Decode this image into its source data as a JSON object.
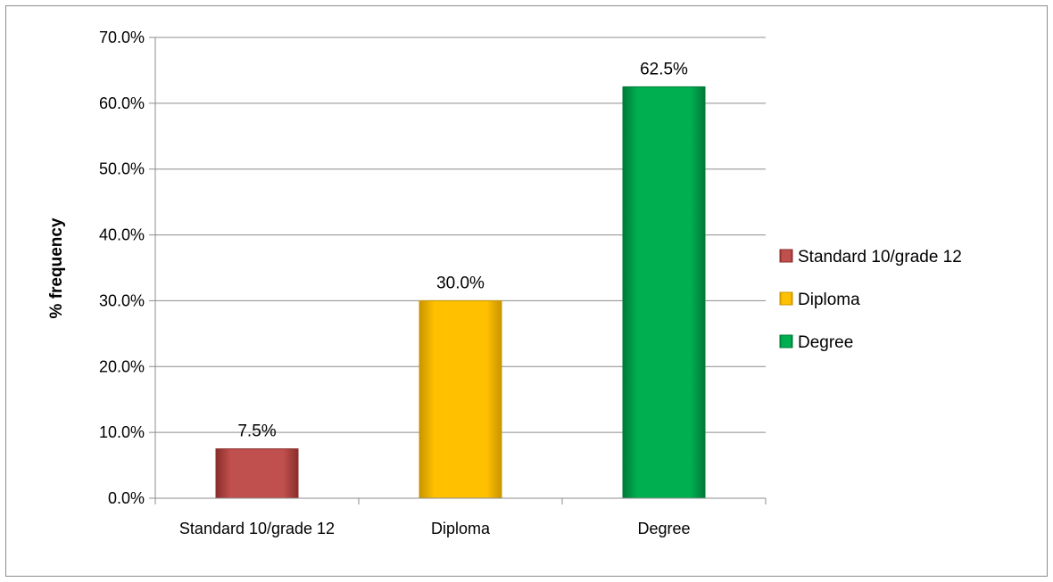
{
  "chart_data": {
    "type": "bar",
    "categories": [
      "Standard 10/grade 12",
      "Diploma",
      "Degree"
    ],
    "values": [
      7.5,
      30.0,
      62.5
    ],
    "value_labels": [
      "7.5%",
      "30.0%",
      "62.5%"
    ],
    "title": "",
    "xlabel": "",
    "ylabel": "% frequency",
    "ylim": [
      0,
      70
    ],
    "yticks": [
      0,
      10,
      20,
      30,
      40,
      50,
      60,
      70
    ],
    "ytick_labels": [
      "0.0%",
      "10.0%",
      "20.0%",
      "30.0%",
      "40.0%",
      "50.0%",
      "60.0%",
      "70.0%"
    ],
    "grid": true,
    "legend": {
      "placement": "right",
      "entries": [
        "Standard 10/grade 12",
        "Diploma",
        "Degree"
      ]
    },
    "colors": [
      "#c0504d",
      "#ffc000",
      "#00b050"
    ],
    "colors_dark": [
      "#8a2e2b",
      "#c99400",
      "#007a38"
    ]
  }
}
